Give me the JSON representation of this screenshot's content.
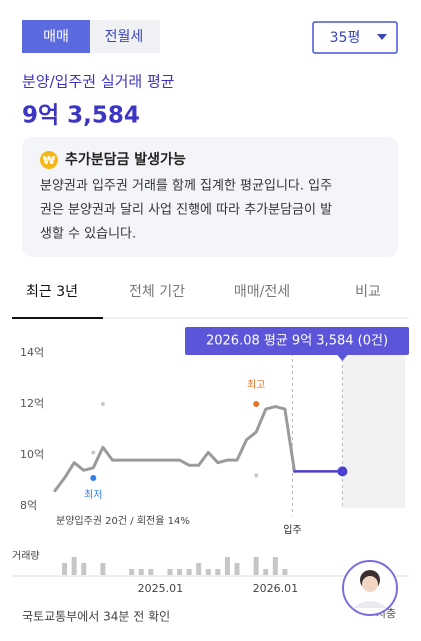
{
  "tabs_top": {
    "items": [
      "매매",
      "전월세"
    ],
    "selected": 0
  },
  "size_select": "35평",
  "summary": {
    "label": "분양/입주권 실거래 평균",
    "value": "9억 3,584"
  },
  "notice": {
    "icon": "₩",
    "title": "추가분담금 발생가능",
    "lines": [
      "분양권과 입주권 거래를 함께 집계한 평균입니다. 입주",
      "권은 분양권과 달리 사업 진행에 따라 추가분담금이 발",
      "생할 수 있습니다."
    ]
  },
  "period_tabs": {
    "items": [
      "최근 3년",
      "전체 기간",
      "매매/전세",
      "비교"
    ],
    "selected": 0
  },
  "chart_data": {
    "type": "line",
    "x": [
      null,
      null,
      null,
      null,
      null,
      null,
      null,
      null,
      null,
      null,
      null,
      "2025.01",
      null,
      null,
      null,
      null,
      null,
      null,
      null,
      null,
      null,
      null,
      null,
      "2026.01",
      null,
      null,
      null,
      null,
      null,
      null,
      null
    ],
    "series": [
      {
        "color": "#9b9b9b",
        "values": [
          8.6,
          9.1,
          9.7,
          9.4,
          9.5,
          10.3,
          9.8,
          9.8,
          9.8,
          9.8,
          9.8,
          9.8,
          9.8,
          9.8,
          9.6,
          9.6,
          10.1,
          9.7,
          9.8,
          9.8,
          10.6,
          10.9,
          11.8,
          11.9,
          11.8,
          9.3584,
          null,
          null,
          null,
          null,
          null
        ]
      },
      {
        "color": "#4b3fd0",
        "values": [
          null,
          null,
          null,
          null,
          null,
          null,
          null,
          null,
          null,
          null,
          null,
          null,
          null,
          null,
          null,
          null,
          null,
          null,
          null,
          null,
          null,
          null,
          null,
          null,
          null,
          9.3584,
          9.3584,
          9.3584,
          9.3584,
          9.3584,
          9.3584
        ]
      }
    ],
    "dots": [
      {
        "index": 4,
        "value": 10.1
      },
      {
        "index": 5,
        "value": 12.0
      },
      {
        "index": 21,
        "value": 9.2
      }
    ],
    "annotations": [
      {
        "text": "최고",
        "index": 21,
        "value": 12.0,
        "color": "#e8722a"
      },
      {
        "text": "최저",
        "index": 4,
        "value": 9.1,
        "color": "#2f80ed"
      }
    ],
    "ylim": [
      8,
      14
    ],
    "yticks": [
      {
        "value": 14,
        "label": "14억"
      },
      {
        "value": 12,
        "label": "12억"
      },
      {
        "value": 10,
        "label": "10억"
      },
      {
        "value": 8,
        "label": "8억"
      }
    ],
    "tooltip": "2026.08 평균 9억 3,584 (0건)",
    "current_index": 30,
    "move_in_label": "입주",
    "move_in_index": 25,
    "note": "분양입주권 20건 / 회전율 14%",
    "volume_label": "거래량",
    "volume": [
      0,
      2,
      3,
      2,
      0,
      2,
      0,
      0,
      1,
      1,
      1,
      0,
      1,
      1,
      1,
      2,
      1,
      1,
      3,
      2,
      0,
      3,
      1,
      3,
      1,
      0,
      0,
      0,
      0,
      0,
      0
    ]
  },
  "footer": {
    "source": "국토교통부에서 34분 전 확인",
    "avatar_label": "지충"
  }
}
